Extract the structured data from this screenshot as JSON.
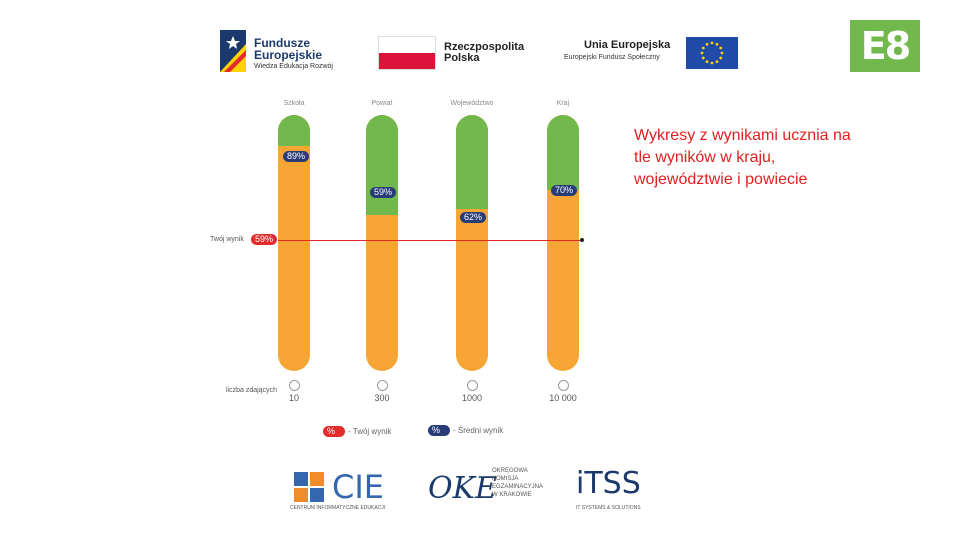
{
  "header": {
    "fe_title": "Fundusze Europejskie",
    "fe_sub": "Wiedza Edukacja Rozwój",
    "rp_title": "Rzeczpospolita Polska",
    "ue_title": "Unia Europejska",
    "ue_sub": "Europejski Fundusz Społeczny",
    "e8_logo": "E8"
  },
  "chart": {
    "columns": [
      {
        "label": "Szkoła",
        "avg": "89%",
        "count": "10"
      },
      {
        "label": "Powiat",
        "avg": "59%",
        "count": "300"
      },
      {
        "label": "Województwo",
        "avg": "62%",
        "count": "1000"
      },
      {
        "label": "Kraj",
        "avg": "70%",
        "count": "10 000"
      }
    ],
    "your_result_label": "Twój wynik",
    "your_result_value": "59%",
    "students_label": "liczba zdających",
    "legend": {
      "you_symbol": "%",
      "you_label": "- Twój wynik",
      "avg_symbol": "%",
      "avg_label": "- Średni wynik"
    },
    "colors": {
      "orange": "#f7a636",
      "green": "#71b84d",
      "navy": "#283c78",
      "red": "#e32b2b"
    }
  },
  "chart_data": {
    "type": "bar",
    "categories": [
      "Szkoła",
      "Powiat",
      "Województwo",
      "Kraj"
    ],
    "series": [
      {
        "name": "Średni wynik",
        "values": [
          89,
          59,
          62,
          70
        ]
      }
    ],
    "reference_line": {
      "label": "Twój wynik",
      "value": 59
    },
    "ylim": [
      0,
      100
    ]
  },
  "caption": "Wykresy z wynikami ucznia na tle wyników w kraju, województwie i powiecie",
  "footer": {
    "cie": "CIE",
    "cie_sub": "CENTRUM INFORMATYCZNE EDUKACJI",
    "oke": "OKE",
    "oke_sub1": "OKRĘGOWA",
    "oke_sub2": "KOMISJA",
    "oke_sub3": "EGZAMINACYJNA",
    "oke_sub4": "W KRAKOWIE",
    "itss": "iTSS",
    "itss_sub": "IT SYSTEMS & SOLUTIONS"
  }
}
